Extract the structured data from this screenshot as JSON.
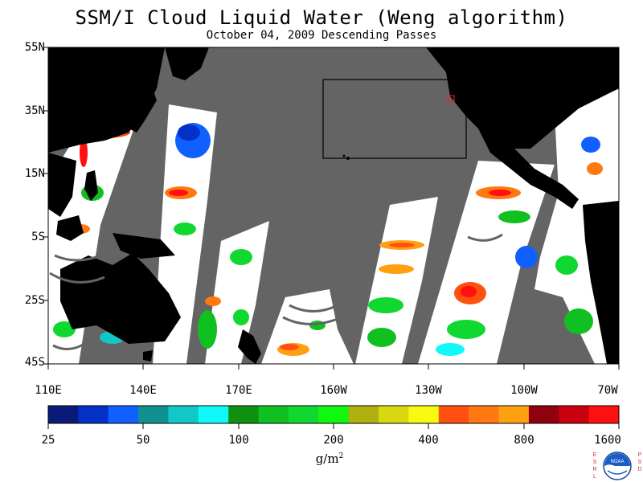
{
  "title": "SSM/I Cloud Liquid Water (Weng algorithm)",
  "subtitle": "October 04, 2009  Descending Passes",
  "lat_labels": [
    "55N",
    "35N",
    "15N",
    "5S",
    "25S",
    "45S"
  ],
  "lon_labels": [
    "110E",
    "140E",
    "170E",
    "160W",
    "130W",
    "100W",
    "70W"
  ],
  "colorbar": {
    "tick_labels": [
      "25",
      "50",
      "100",
      "200",
      "400",
      "800",
      "1600"
    ],
    "units_base": "g/m",
    "units_exp": "2",
    "colors": [
      "#0a1a78",
      "#0530c8",
      "#1060ff",
      "#109090",
      "#10c8c8",
      "#10f8f8",
      "#109010",
      "#10c020",
      "#10d830",
      "#10f810",
      "#b0b010",
      "#d8d810",
      "#f8f810",
      "#ff5010",
      "#ff7810",
      "#ffa010",
      "#900010",
      "#c80010",
      "#ff1010"
    ]
  },
  "logo": {
    "name": "NOAA",
    "left_text": "E S R L",
    "right_text": "P S D"
  },
  "colors": {
    "land": "#000000",
    "no_data": "#646464",
    "ocean_clear": "#ffffff",
    "box": "#000000",
    "marker": "#ff2020"
  }
}
